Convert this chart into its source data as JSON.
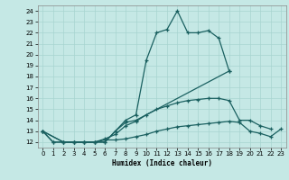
{
  "xlabel": "Humidex (Indice chaleur)",
  "bg_color": "#c5e8e5",
  "grid_color": "#a8d4d0",
  "line_color": "#1a6060",
  "xlim": [
    -0.5,
    23.5
  ],
  "ylim": [
    11.5,
    24.5
  ],
  "xticks": [
    0,
    1,
    2,
    3,
    4,
    5,
    6,
    7,
    8,
    9,
    10,
    11,
    12,
    13,
    14,
    15,
    16,
    17,
    18,
    19,
    20,
    21,
    22,
    23
  ],
  "yticks": [
    12,
    13,
    14,
    15,
    16,
    17,
    18,
    19,
    20,
    21,
    22,
    23,
    24
  ],
  "lines_x": [
    [
      0,
      1,
      2,
      3,
      4,
      5,
      6,
      7,
      8,
      9,
      10,
      11,
      12,
      13,
      14,
      15,
      16,
      17,
      18
    ],
    [
      0,
      1,
      2,
      3,
      4,
      5,
      6,
      7,
      8,
      9,
      18
    ],
    [
      0,
      2,
      3,
      4,
      5,
      6,
      7,
      8,
      9,
      10,
      11,
      12,
      13,
      14,
      15,
      16,
      17,
      18,
      19,
      20,
      21,
      22
    ],
    [
      0,
      2,
      3,
      4,
      5,
      6,
      7,
      8,
      9,
      10,
      11,
      12,
      13,
      14,
      15,
      16,
      17,
      18,
      19,
      20,
      21,
      22,
      23
    ]
  ],
  "lines_y": [
    [
      13,
      12,
      12,
      12,
      12,
      12,
      12,
      13,
      14,
      14.5,
      19.5,
      22,
      22.3,
      24,
      22,
      22,
      22.2,
      21.5,
      18.5
    ],
    [
      13,
      12,
      12,
      12,
      12,
      12,
      12,
      13,
      13.8,
      14,
      18.5
    ],
    [
      13,
      12,
      12,
      12,
      12,
      12.3,
      12.7,
      13.5,
      13.9,
      14.5,
      15.0,
      15.3,
      15.6,
      15.8,
      15.9,
      16.0,
      16.0,
      15.8,
      14.0,
      14.0,
      13.5,
      13.2
    ],
    [
      13,
      12,
      12,
      12,
      12,
      12.2,
      12.2,
      12.3,
      12.5,
      12.7,
      13.0,
      13.2,
      13.4,
      13.5,
      13.6,
      13.7,
      13.8,
      13.9,
      13.8,
      13.0,
      12.8,
      12.5,
      13.2
    ]
  ]
}
